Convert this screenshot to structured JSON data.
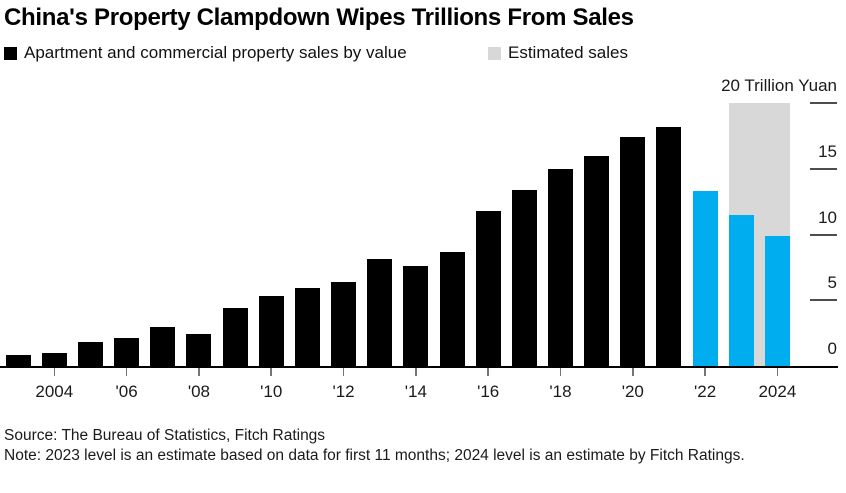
{
  "title": "China's Property Clampdown Wipes Trillions From Sales",
  "legend": [
    {
      "label": "Apartment and commercial property sales by value",
      "color": "#000000"
    },
    {
      "label": "Estimated sales",
      "color": "#d8d8d8"
    }
  ],
  "chart_data": {
    "type": "bar",
    "title": "China's Property Clampdown Wipes Trillions From Sales",
    "unit_label": "20 Trillion Yuan",
    "ylabel": "Trillion Yuan",
    "ylim": [
      0,
      20
    ],
    "y_ticks": [
      0,
      5,
      10,
      15,
      20
    ],
    "categories": [
      2003,
      2004,
      2005,
      2006,
      2007,
      2008,
      2009,
      2010,
      2011,
      2012,
      2013,
      2014,
      2015,
      2016,
      2017,
      2018,
      2019,
      2020,
      2021,
      2022,
      2023,
      2024
    ],
    "values": [
      0.8,
      1.0,
      1.8,
      2.1,
      3.0,
      2.4,
      4.4,
      5.3,
      5.9,
      6.4,
      8.1,
      7.6,
      8.7,
      11.8,
      13.4,
      15.0,
      16.0,
      17.4,
      18.2,
      13.3,
      11.5,
      9.9
    ],
    "highlight_years": [
      2022,
      2023,
      2024
    ],
    "estimated_band_years": [
      2023,
      2024
    ],
    "x_tick_labels": [
      {
        "year": 2004,
        "label": "2004"
      },
      {
        "year": 2006,
        "label": "'06"
      },
      {
        "year": 2008,
        "label": "'08"
      },
      {
        "year": 2010,
        "label": "'10"
      },
      {
        "year": 2012,
        "label": "'12"
      },
      {
        "year": 2014,
        "label": "'14"
      },
      {
        "year": 2016,
        "label": "'16"
      },
      {
        "year": 2018,
        "label": "'18"
      },
      {
        "year": 2020,
        "label": "'20"
      },
      {
        "year": 2022,
        "label": "'22"
      },
      {
        "year": 2024,
        "label": "2024"
      }
    ],
    "colors": {
      "actual_bar": "#000000",
      "highlight_bar": "#00aeef",
      "estimated_band": "#d8d8d8"
    },
    "legend_position": "top",
    "grid": false
  },
  "footer": {
    "source": "Source: The Bureau of Statistics, Fitch Ratings",
    "note": "Note: 2023 level is an estimate based on data for first 11 months; 2024 level is an estimate by Fitch Ratings."
  }
}
